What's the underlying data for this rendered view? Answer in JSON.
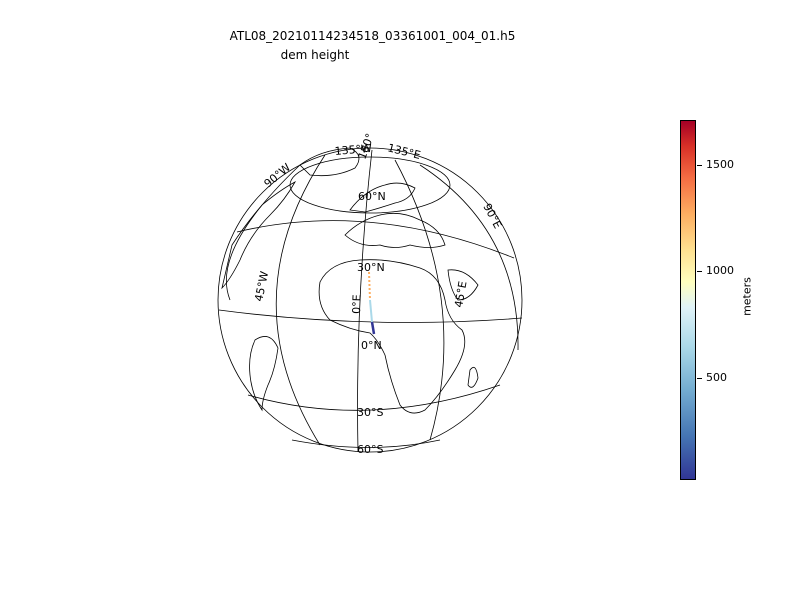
{
  "figure": {
    "title": "ATL08_20210114234518_03361001_004_01.h5",
    "subtitle": "dem height"
  },
  "globe": {
    "projection": "orthographic",
    "latitude_labels": [
      "60°N",
      "30°N",
      "0°N",
      "30°S",
      "60°S"
    ],
    "longitude_labels": [
      "0°E",
      "45°E",
      "90°E",
      "135°E",
      "180°",
      "135°W",
      "90°W",
      "45°W"
    ]
  },
  "colorbar": {
    "units": "meters",
    "ticks": [
      "500",
      "1000",
      "1500"
    ],
    "range": [
      0,
      1710
    ],
    "colormap": "RdYlBu_r"
  },
  "track": {
    "description_values": "ICESat-2 ground track along ~2°E, heights colored by colorbar",
    "color_low": "#313695",
    "color_high": "#fdae61"
  }
}
